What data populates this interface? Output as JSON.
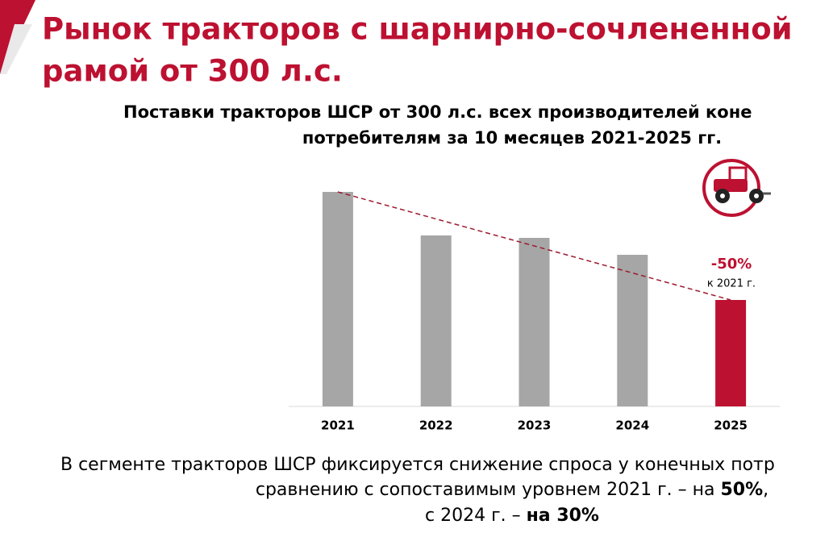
{
  "header": {
    "title_lines": [
      "Рынок тракторов с шарнирно-сочлененной",
      "рамой от 300 л.с."
    ]
  },
  "chart_data": {
    "type": "bar",
    "title_lines": [
      "Поставки тракторов ШСР от 300 л.с. всех производителей коне",
      "потребителям за 10 месяцев 2021-2025 гг."
    ],
    "categories": [
      "2021",
      "2022",
      "2023",
      "2024",
      "2025"
    ],
    "values": [
      266,
      212,
      209,
      188,
      132
    ],
    "colors": [
      "#a6a6a6",
      "#a6a6a6",
      "#a6a6a6",
      "#a6a6a6",
      "#bd1131"
    ],
    "ylim": [
      0,
      280
    ],
    "trend_line": true,
    "annotation": {
      "text": "-50%",
      "subtext": "к 2021 г."
    }
  },
  "footer": {
    "line1": "В сегменте тракторов ШСР фиксируется снижение спроса у конечных потр",
    "line2": {
      "text": "сравнению с сопоставимым уровнем 2021 г. – на ",
      "bold": "50%",
      "tail": ","
    },
    "line3": {
      "text": "с 2024 г. – ",
      "bold": "на 30%"
    }
  }
}
